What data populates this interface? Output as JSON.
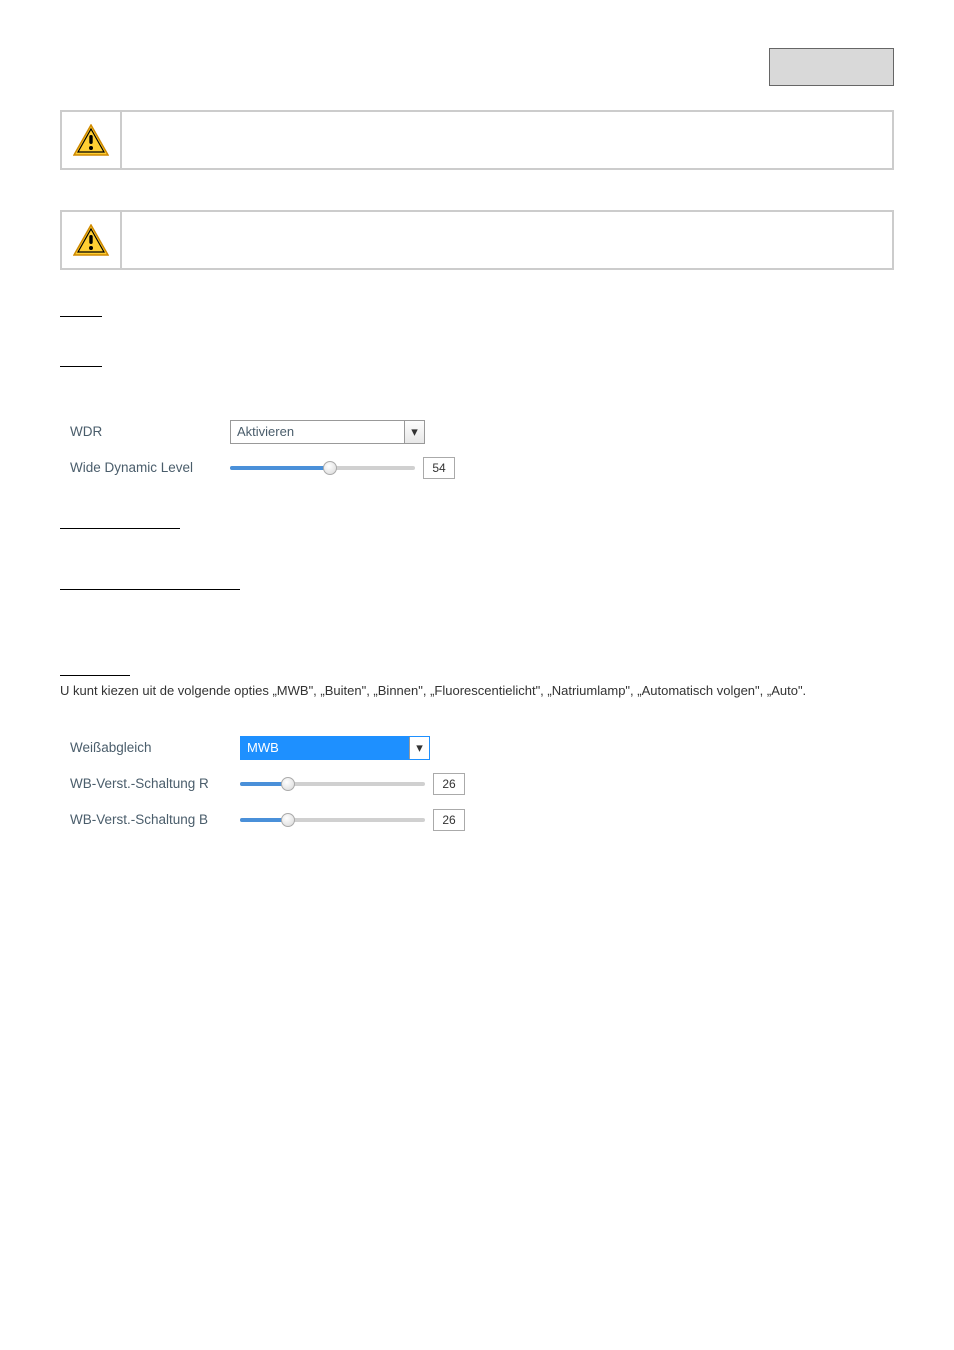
{
  "header": {
    "page_number_label": ""
  },
  "note1": {
    "text": ""
  },
  "note2": {
    "text": ""
  },
  "wdr_section": {
    "label_wdr": "WDR",
    "label_level": "Wide Dynamic Level",
    "select_value": "Aktivieren",
    "slider_value": "54",
    "slider_percent": 54,
    "slider_color": "#4a90d9",
    "arrow_glyph": "▾"
  },
  "underline_a": "",
  "underline_b": "",
  "witbalans": {
    "heading": "",
    "text": "U kunt kiezen uit de volgende opties „MWB\", „Buiten\", „Binnen\", „Fluorescentielicht\", „Natriumlamp\", „Automatisch volgen\", „Auto\"."
  },
  "wb_form": {
    "label_main": "Weißabgleich",
    "select_value": "MWB",
    "label_r": "WB-Verst.-Schaltung R",
    "label_b": "WB-Verst.-Schaltung B",
    "r_value": "26",
    "r_percent": 26,
    "b_value": "26",
    "b_percent": 26,
    "slider_color": "#4a90d9",
    "arrow_glyph": "▾"
  },
  "underline_placeholders": {
    "p1_width": 42,
    "p2_width": 42,
    "p3_width": 120,
    "p4_width": 180,
    "p5_width": 70
  }
}
